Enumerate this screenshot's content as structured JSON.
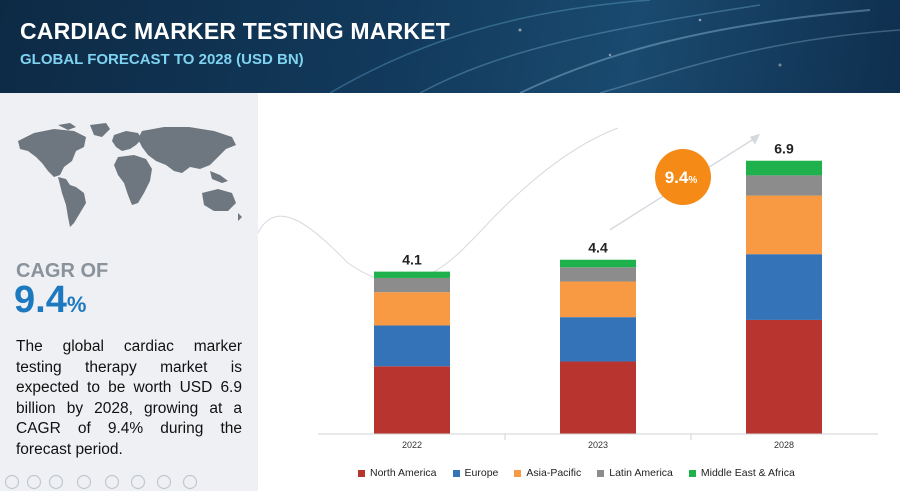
{
  "header": {
    "title": "CARDIAC MARKER TESTING MARKET",
    "subtitle": "GLOBAL FORECAST TO 2028 (USD BN)"
  },
  "left_panel": {
    "cagr_label": "CAGR OF",
    "cagr_number": "9.4",
    "cagr_unit": "%",
    "description": "The global cardiac marker testing therapy market is expected to be worth USD 6.9 billion by 2028, growing at a CAGR of 9.4% during the forecast period."
  },
  "growth_badge": {
    "number": "9.4",
    "unit": "%"
  },
  "chart_data": {
    "type": "bar",
    "stacked": true,
    "categories": [
      "2022",
      "2023",
      "2028"
    ],
    "totals": [
      "4.1",
      "4.4",
      "6.9"
    ],
    "ylim": [
      0,
      7.6
    ],
    "legend_position": "bottom",
    "series": [
      {
        "name": "North America",
        "color": "#b8352f",
        "values": [
          1.71,
          1.83,
          2.88
        ]
      },
      {
        "name": "Europe",
        "color": "#3473b8",
        "values": [
          1.03,
          1.12,
          1.66
        ]
      },
      {
        "name": "Asia-Pacific",
        "color": "#f79a43",
        "values": [
          0.84,
          0.9,
          1.48
        ]
      },
      {
        "name": "Latin America",
        "color": "#8c8c8c",
        "values": [
          0.36,
          0.36,
          0.51
        ]
      },
      {
        "name": "Middle East & Africa",
        "color": "#1fb14b",
        "values": [
          0.16,
          0.19,
          0.37
        ]
      }
    ]
  }
}
